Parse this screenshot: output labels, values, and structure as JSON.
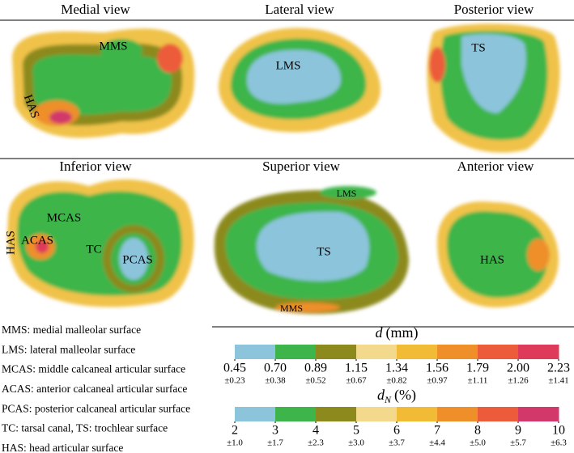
{
  "figure": {
    "views": [
      {
        "title": "Medial view",
        "labels": [
          "MMS",
          "HAS"
        ]
      },
      {
        "title": "Lateral view",
        "labels": [
          "LMS"
        ]
      },
      {
        "title": "Posterior view",
        "labels": [
          "TS"
        ]
      },
      {
        "title": "Inferior view",
        "labels": [
          "MCAS",
          "ACAS",
          "HAS",
          "TC",
          "PCAS"
        ]
      },
      {
        "title": "Superior  view",
        "labels": [
          "TS",
          "LMS",
          "MMS"
        ]
      },
      {
        "title": "Anterior view",
        "labels": [
          "HAS"
        ]
      }
    ],
    "abbreviations": [
      "MMS: medial malleolar surface",
      "LMS: lateral malleolar surface",
      "MCAS: middle calcaneal articular surface",
      "ACAS: anterior calcaneal articular surface",
      "PCAS: posterior calcaneal articular surface",
      "TC: tarsal canal, TS: trochlear surface",
      "HAS: head articular surface"
    ],
    "colorbars": [
      {
        "symbol": "d",
        "unit": "(mm)",
        "colors": [
          "#8cc4dc",
          "#3db54a",
          "#8c8a1c",
          "#f3d98c",
          "#f2bb35",
          "#ee8f2a",
          "#ec5b3a",
          "#de3a5a"
        ],
        "ticks": [
          0.45,
          {
            "value": 0.7,
            "label": "0.70"
          },
          0.89,
          1.15,
          1.34,
          1.56,
          1.79,
          {
            "value": 2,
            "label": "2.00"
          },
          2.23
        ],
        "sublabels": [
          "±0.23",
          "±0.38",
          "±0.52",
          "±0.67",
          "±0.82",
          "±0.97",
          "±1.11",
          "±1.26",
          "±1.41"
        ]
      },
      {
        "symbol": "d",
        "subscript": "N",
        "unit": "(%)",
        "colors": [
          "#8cc4dc",
          "#3db54a",
          "#8c8a1c",
          "#f3d98c",
          "#f2bb35",
          "#ee8f2a",
          "#ec5b3a",
          "#d2386a"
        ],
        "ticks": [
          2,
          3,
          4,
          5,
          6,
          7,
          8,
          9,
          10
        ],
        "sublabels": [
          "±1.0",
          "±1.7",
          "±2.3",
          "±3.0",
          "±3.7",
          "±4.4",
          "±5.0",
          "±5.7",
          "±6.3"
        ]
      }
    ]
  }
}
